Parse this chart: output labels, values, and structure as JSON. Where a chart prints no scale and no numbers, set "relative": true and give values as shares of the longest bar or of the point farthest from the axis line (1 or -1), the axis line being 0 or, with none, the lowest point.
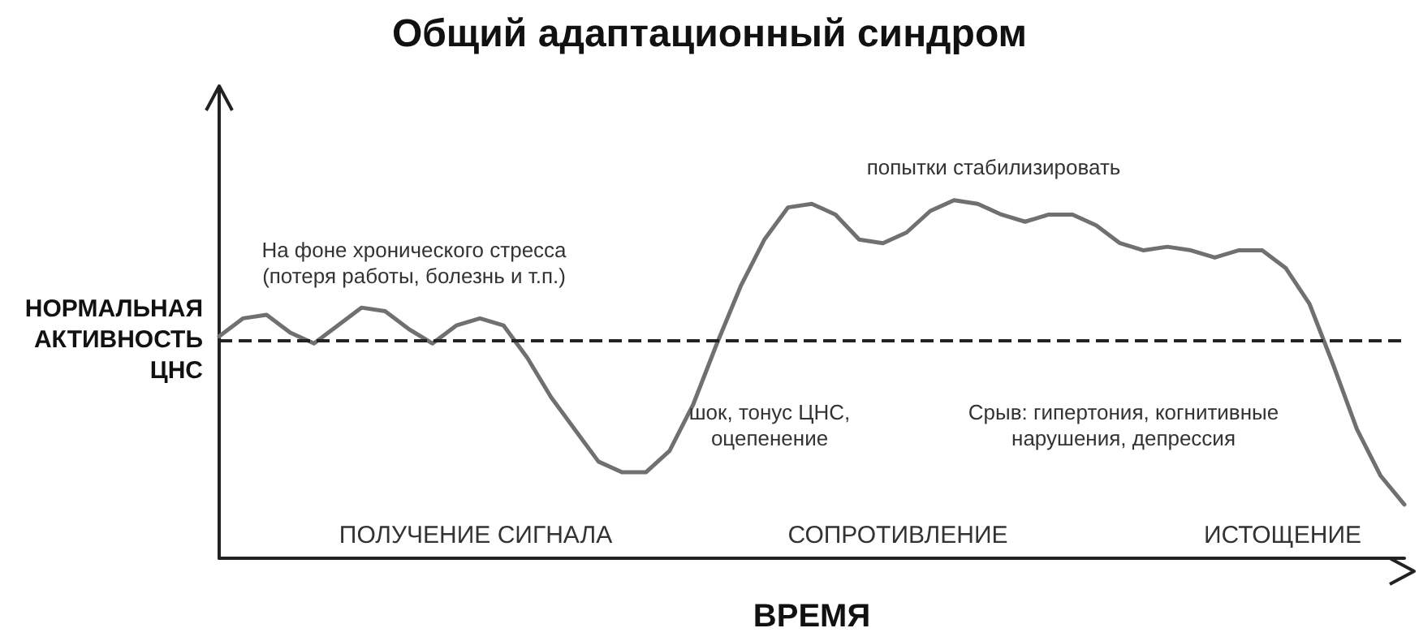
{
  "chart_data": {
    "type": "line",
    "title": "Общий адаптационный синдром",
    "xlabel": "ВРЕМЯ",
    "relative": true,
    "grid": false,
    "marker": "none",
    "line_style": "solid",
    "color": "#707070",
    "categories": [
      null,
      null,
      null,
      null,
      null,
      null,
      null,
      null,
      null,
      null,
      null,
      null,
      null,
      null,
      null,
      null,
      null,
      null,
      null,
      null,
      null,
      null,
      null,
      null,
      null,
      null,
      null,
      null,
      null,
      null,
      null,
      null,
      null,
      null,
      null,
      null,
      null,
      null,
      null,
      null,
      null,
      null,
      null,
      null,
      null,
      null,
      null,
      null,
      null,
      null,
      null
    ],
    "values": [
      0.62,
      0.67,
      0.68,
      0.63,
      0.6,
      0.65,
      0.7,
      0.69,
      0.64,
      0.6,
      0.65,
      0.67,
      0.65,
      0.56,
      0.45,
      0.36,
      0.27,
      0.24,
      0.24,
      0.3,
      0.43,
      0.6,
      0.76,
      0.89,
      0.98,
      0.99,
      0.96,
      0.89,
      0.88,
      0.91,
      0.97,
      1.0,
      0.99,
      0.96,
      0.94,
      0.96,
      0.96,
      0.93,
      0.88,
      0.86,
      0.87,
      0.86,
      0.84,
      0.86,
      0.86,
      0.81,
      0.71,
      0.54,
      0.36,
      0.23,
      0.15
    ],
    "ref_lines": [
      {
        "axis": "y",
        "value": 0.61,
        "label": "НОРМАЛЬНАЯ\nАКТИВНОСТЬ\nЦНС",
        "line_style": "dashed",
        "color": "#222222"
      }
    ],
    "annotations": [
      "На фоне хронического стресса\n(потеря работы, болезнь и т.п.)",
      "шок, тонус ЦНС,\nоцепенение",
      "попытки стабилизировать",
      "Срыв: гипертония, когнитивные\nнарушения, депрессия",
      "ПОЛУЧЕНИЕ СИГНАЛА",
      "СОПРОТИВЛЕНИЕ",
      "ИСТОЩЕНИЕ"
    ]
  }
}
